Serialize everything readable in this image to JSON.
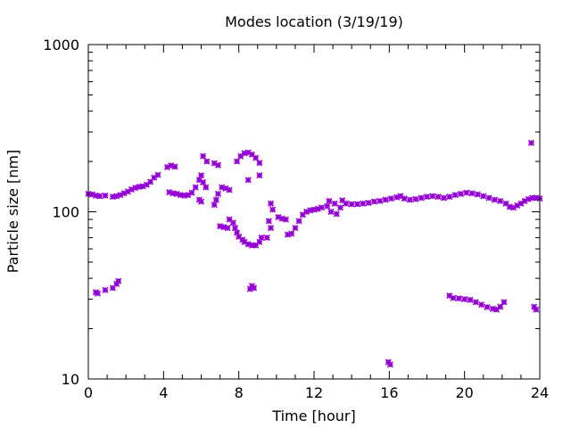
{
  "chart_data": {
    "type": "scatter",
    "title": "Modes location (3/19/19)",
    "xlabel": "Time [hour]",
    "ylabel": "Particle size [nm]",
    "xlim": [
      0,
      24
    ],
    "ylim": [
      10,
      1000
    ],
    "yscale": "log",
    "xticks": [
      0,
      4,
      8,
      12,
      16,
      20,
      24
    ],
    "xtick_labels": [
      "0",
      "4",
      "8",
      "12",
      "16",
      "20",
      "24"
    ],
    "yticks": [
      10,
      100,
      1000
    ],
    "ytick_labels": [
      "10",
      "100",
      "1000"
    ],
    "grid": false,
    "legend": "none",
    "marker": "star",
    "color": "#9400d3",
    "series": [
      {
        "values": [
          [
            0.0,
            128
          ],
          [
            0.2,
            127
          ],
          [
            0.4,
            125
          ],
          [
            0.6,
            124
          ],
          [
            0.9,
            125
          ],
          [
            1.3,
            123
          ],
          [
            1.5,
            124
          ],
          [
            1.7,
            126
          ],
          [
            1.9,
            129
          ],
          [
            2.1,
            132
          ],
          [
            2.3,
            136
          ],
          [
            2.5,
            139
          ],
          [
            2.7,
            141
          ],
          [
            2.9,
            142
          ],
          [
            3.1,
            145
          ],
          [
            3.3,
            151
          ],
          [
            3.5,
            160
          ],
          [
            3.7,
            166
          ],
          [
            4.2,
            185
          ],
          [
            4.4,
            189
          ],
          [
            4.6,
            186
          ],
          [
            4.3,
            131
          ],
          [
            4.5,
            129
          ],
          [
            4.7,
            128
          ],
          [
            4.9,
            126
          ],
          [
            5.1,
            125
          ],
          [
            5.3,
            126
          ],
          [
            5.5,
            130
          ],
          [
            5.7,
            140
          ],
          [
            5.9,
            155
          ],
          [
            6.0,
            165
          ],
          [
            6.1,
            150
          ],
          [
            6.25,
            140
          ],
          [
            6.1,
            215
          ],
          [
            6.3,
            200
          ],
          [
            5.9,
            118
          ],
          [
            6.0,
            115
          ],
          [
            6.7,
            195
          ],
          [
            6.9,
            190
          ],
          [
            6.7,
            110
          ],
          [
            6.8,
            118
          ],
          [
            6.9,
            128
          ],
          [
            7.1,
            140
          ],
          [
            7.3,
            138
          ],
          [
            7.5,
            135
          ],
          [
            7.0,
            82
          ],
          [
            7.2,
            81
          ],
          [
            7.4,
            80
          ],
          [
            7.5,
            90
          ],
          [
            7.7,
            86
          ],
          [
            7.8,
            80
          ],
          [
            7.9,
            75
          ],
          [
            8.0,
            71
          ],
          [
            8.2,
            68
          ],
          [
            8.3,
            66
          ],
          [
            8.5,
            64
          ],
          [
            8.7,
            63
          ],
          [
            8.9,
            63
          ],
          [
            9.1,
            66
          ],
          [
            9.2,
            70
          ],
          [
            7.9,
            200
          ],
          [
            8.1,
            215
          ],
          [
            8.3,
            224
          ],
          [
            8.5,
            226
          ],
          [
            8.7,
            220
          ],
          [
            8.9,
            210
          ],
          [
            9.1,
            196
          ],
          [
            8.5,
            155
          ],
          [
            9.1,
            165
          ],
          [
            9.7,
            112
          ],
          [
            9.8,
            103
          ],
          [
            9.6,
            88
          ],
          [
            9.7,
            80
          ],
          [
            9.5,
            70
          ],
          [
            10.1,
            93
          ],
          [
            10.3,
            91
          ],
          [
            10.5,
            90
          ],
          [
            10.6,
            73
          ],
          [
            10.8,
            74
          ],
          [
            11.0,
            80
          ],
          [
            11.2,
            88
          ],
          [
            11.4,
            96
          ],
          [
            11.6,
            100
          ],
          [
            11.8,
            102
          ],
          [
            12.0,
            103
          ],
          [
            12.2,
            104
          ],
          [
            12.4,
            106
          ],
          [
            12.7,
            108
          ],
          [
            12.8,
            116
          ],
          [
            12.9,
            100
          ],
          [
            13.1,
            112
          ],
          [
            13.2,
            97
          ],
          [
            13.4,
            106
          ],
          [
            13.5,
            117
          ],
          [
            13.7,
            112
          ],
          [
            14.0,
            111
          ],
          [
            14.3,
            111
          ],
          [
            14.6,
            112
          ],
          [
            14.9,
            113
          ],
          [
            15.2,
            115
          ],
          [
            15.5,
            116
          ],
          [
            15.8,
            118
          ],
          [
            16.1,
            120
          ],
          [
            16.4,
            122
          ],
          [
            16.6,
            124
          ],
          [
            16.8,
            120
          ],
          [
            17.1,
            118
          ],
          [
            17.4,
            119
          ],
          [
            17.7,
            121
          ],
          [
            18.0,
            123
          ],
          [
            18.3,
            124
          ],
          [
            18.6,
            123
          ],
          [
            18.9,
            121
          ],
          [
            19.2,
            123
          ],
          [
            19.5,
            126
          ],
          [
            19.8,
            128
          ],
          [
            20.1,
            130
          ],
          [
            20.4,
            129
          ],
          [
            20.7,
            127
          ],
          [
            21.0,
            124
          ],
          [
            21.3,
            121
          ],
          [
            21.6,
            118
          ],
          [
            21.9,
            116
          ],
          [
            22.2,
            112
          ],
          [
            22.4,
            107
          ],
          [
            22.6,
            106
          ],
          [
            22.8,
            109
          ],
          [
            23.0,
            112
          ],
          [
            23.2,
            116
          ],
          [
            23.4,
            119
          ],
          [
            23.6,
            121
          ],
          [
            23.8,
            121
          ],
          [
            24.0,
            120
          ],
          [
            23.55,
            258
          ],
          [
            0.4,
            33
          ],
          [
            0.5,
            32.5
          ],
          [
            0.9,
            34
          ],
          [
            1.3,
            35
          ],
          [
            1.5,
            37
          ],
          [
            1.6,
            38.5
          ],
          [
            8.6,
            34.5
          ],
          [
            8.7,
            36
          ],
          [
            8.8,
            35
          ],
          [
            15.95,
            12.6
          ],
          [
            16.05,
            12.2
          ],
          [
            19.2,
            31.5
          ],
          [
            19.4,
            30.5
          ],
          [
            19.7,
            30.3
          ],
          [
            20.0,
            30
          ],
          [
            20.3,
            29.7
          ],
          [
            20.6,
            28.8
          ],
          [
            20.9,
            27.8
          ],
          [
            21.2,
            26.9
          ],
          [
            21.5,
            26.3
          ],
          [
            21.7,
            26
          ],
          [
            21.9,
            27
          ],
          [
            22.1,
            28.8
          ],
          [
            23.7,
            27
          ],
          [
            23.8,
            26
          ]
        ]
      }
    ]
  }
}
